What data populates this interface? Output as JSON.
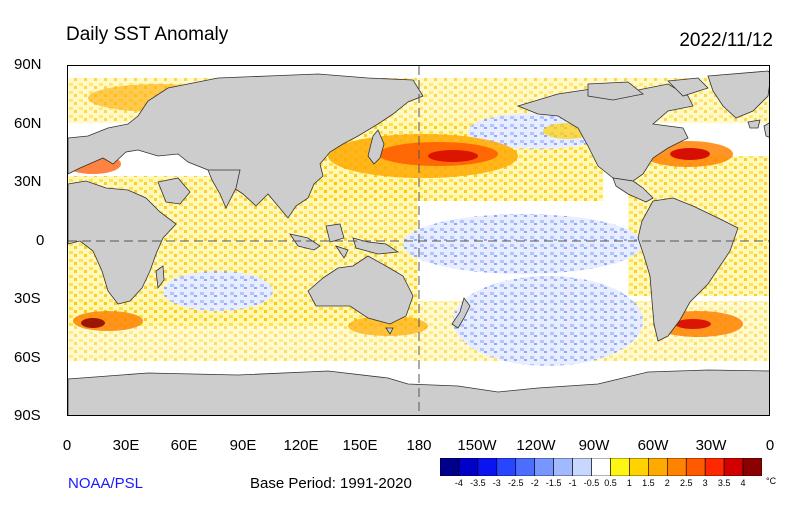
{
  "title": "Daily SST Anomaly",
  "date": "2022/11/12",
  "credit": "NOAA/PSL",
  "base_period": "Base Period: 1991-2020",
  "lat_labels": [
    "90N",
    "60N",
    "30N",
    "0",
    "30S",
    "60S",
    "90S"
  ],
  "lon_labels": [
    "0",
    "30E",
    "60E",
    "90E",
    "120E",
    "150E",
    "180",
    "150W",
    "120W",
    "90W",
    "60W",
    "30W",
    "0"
  ],
  "colorbar": {
    "unit": "°C",
    "labels": [
      "-4",
      "-3.5",
      "-3",
      "-2.5",
      "-2",
      "-1.5",
      "-1",
      "-0.5",
      "0.5",
      "1",
      "1.5",
      "2",
      "2.5",
      "3",
      "3.5",
      "4"
    ],
    "colors": [
      "#00008b",
      "#0000c8",
      "#0a14f0",
      "#2846ff",
      "#4b6eff",
      "#7896ff",
      "#a0b9ff",
      "#c8d7ff",
      "#ffffff",
      "#fff514",
      "#ffd200",
      "#ffaa00",
      "#ff8200",
      "#ff5a00",
      "#ff2800",
      "#d20000",
      "#8b0000"
    ]
  },
  "colors": {
    "land": "#cdcdcd",
    "coast": "#333333",
    "ocean_neutral": "#ffffff",
    "credit": "#1a1aff"
  }
}
